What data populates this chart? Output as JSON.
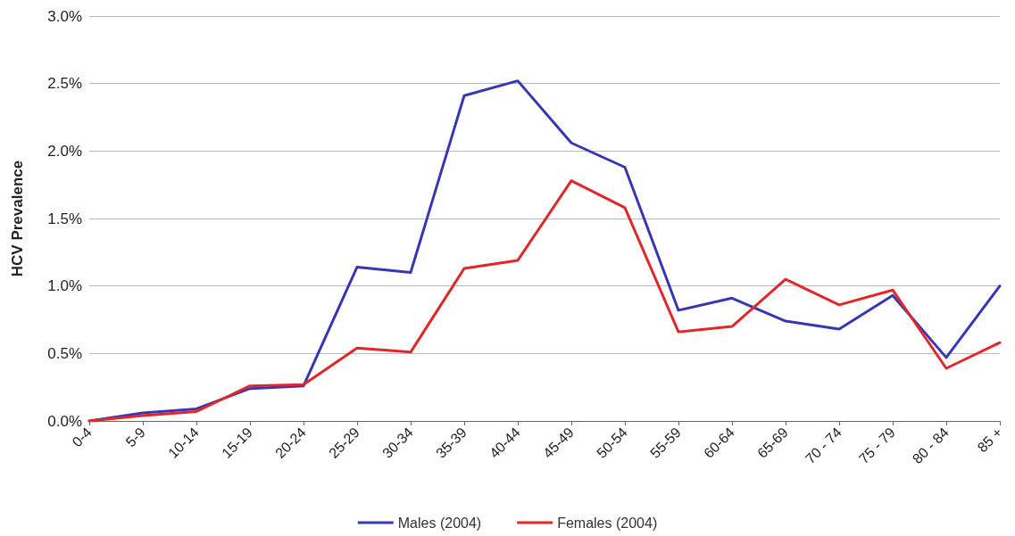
{
  "chart_data": {
    "type": "line",
    "ylabel": "HCV Prevalence",
    "categories": [
      "0-4",
      "5-9",
      "10-14",
      "15-19",
      "20-24",
      "25-29",
      "30-34",
      "35-39",
      "40-44",
      "45-49",
      "50-54",
      "55-59",
      "60-64",
      "65-69",
      "70 - 74",
      "75 - 79",
      "80 - 84",
      "85 +"
    ],
    "series": [
      {
        "name": "Males (2004)",
        "color": "#3737b4",
        "values": [
          0.0,
          0.06,
          0.09,
          0.24,
          0.26,
          1.14,
          1.1,
          2.41,
          2.52,
          2.06,
          1.88,
          0.82,
          0.91,
          0.74,
          0.68,
          0.93,
          0.47,
          1.0
        ]
      },
      {
        "name": "Females (2004)",
        "color": "#e0282a",
        "values": [
          0.0,
          0.04,
          0.07,
          0.26,
          0.27,
          0.54,
          0.51,
          1.13,
          1.19,
          1.78,
          1.58,
          0.66,
          0.7,
          1.05,
          0.86,
          0.97,
          0.39,
          0.58
        ]
      }
    ],
    "ylim": [
      0,
      3
    ],
    "yticks": [
      {
        "value": 0,
        "label": "0.0%"
      },
      {
        "value": 0.5,
        "label": "0.5%"
      },
      {
        "value": 1,
        "label": "1.0%"
      },
      {
        "value": 1.5,
        "label": "1.5%"
      },
      {
        "value": 2,
        "label": "2.0%"
      },
      {
        "value": 2.5,
        "label": "2.5%"
      },
      {
        "value": 3,
        "label": "3.0%"
      }
    ],
    "grid": "y",
    "legend": "bottom",
    "marker": "none",
    "line_style": "solid"
  }
}
